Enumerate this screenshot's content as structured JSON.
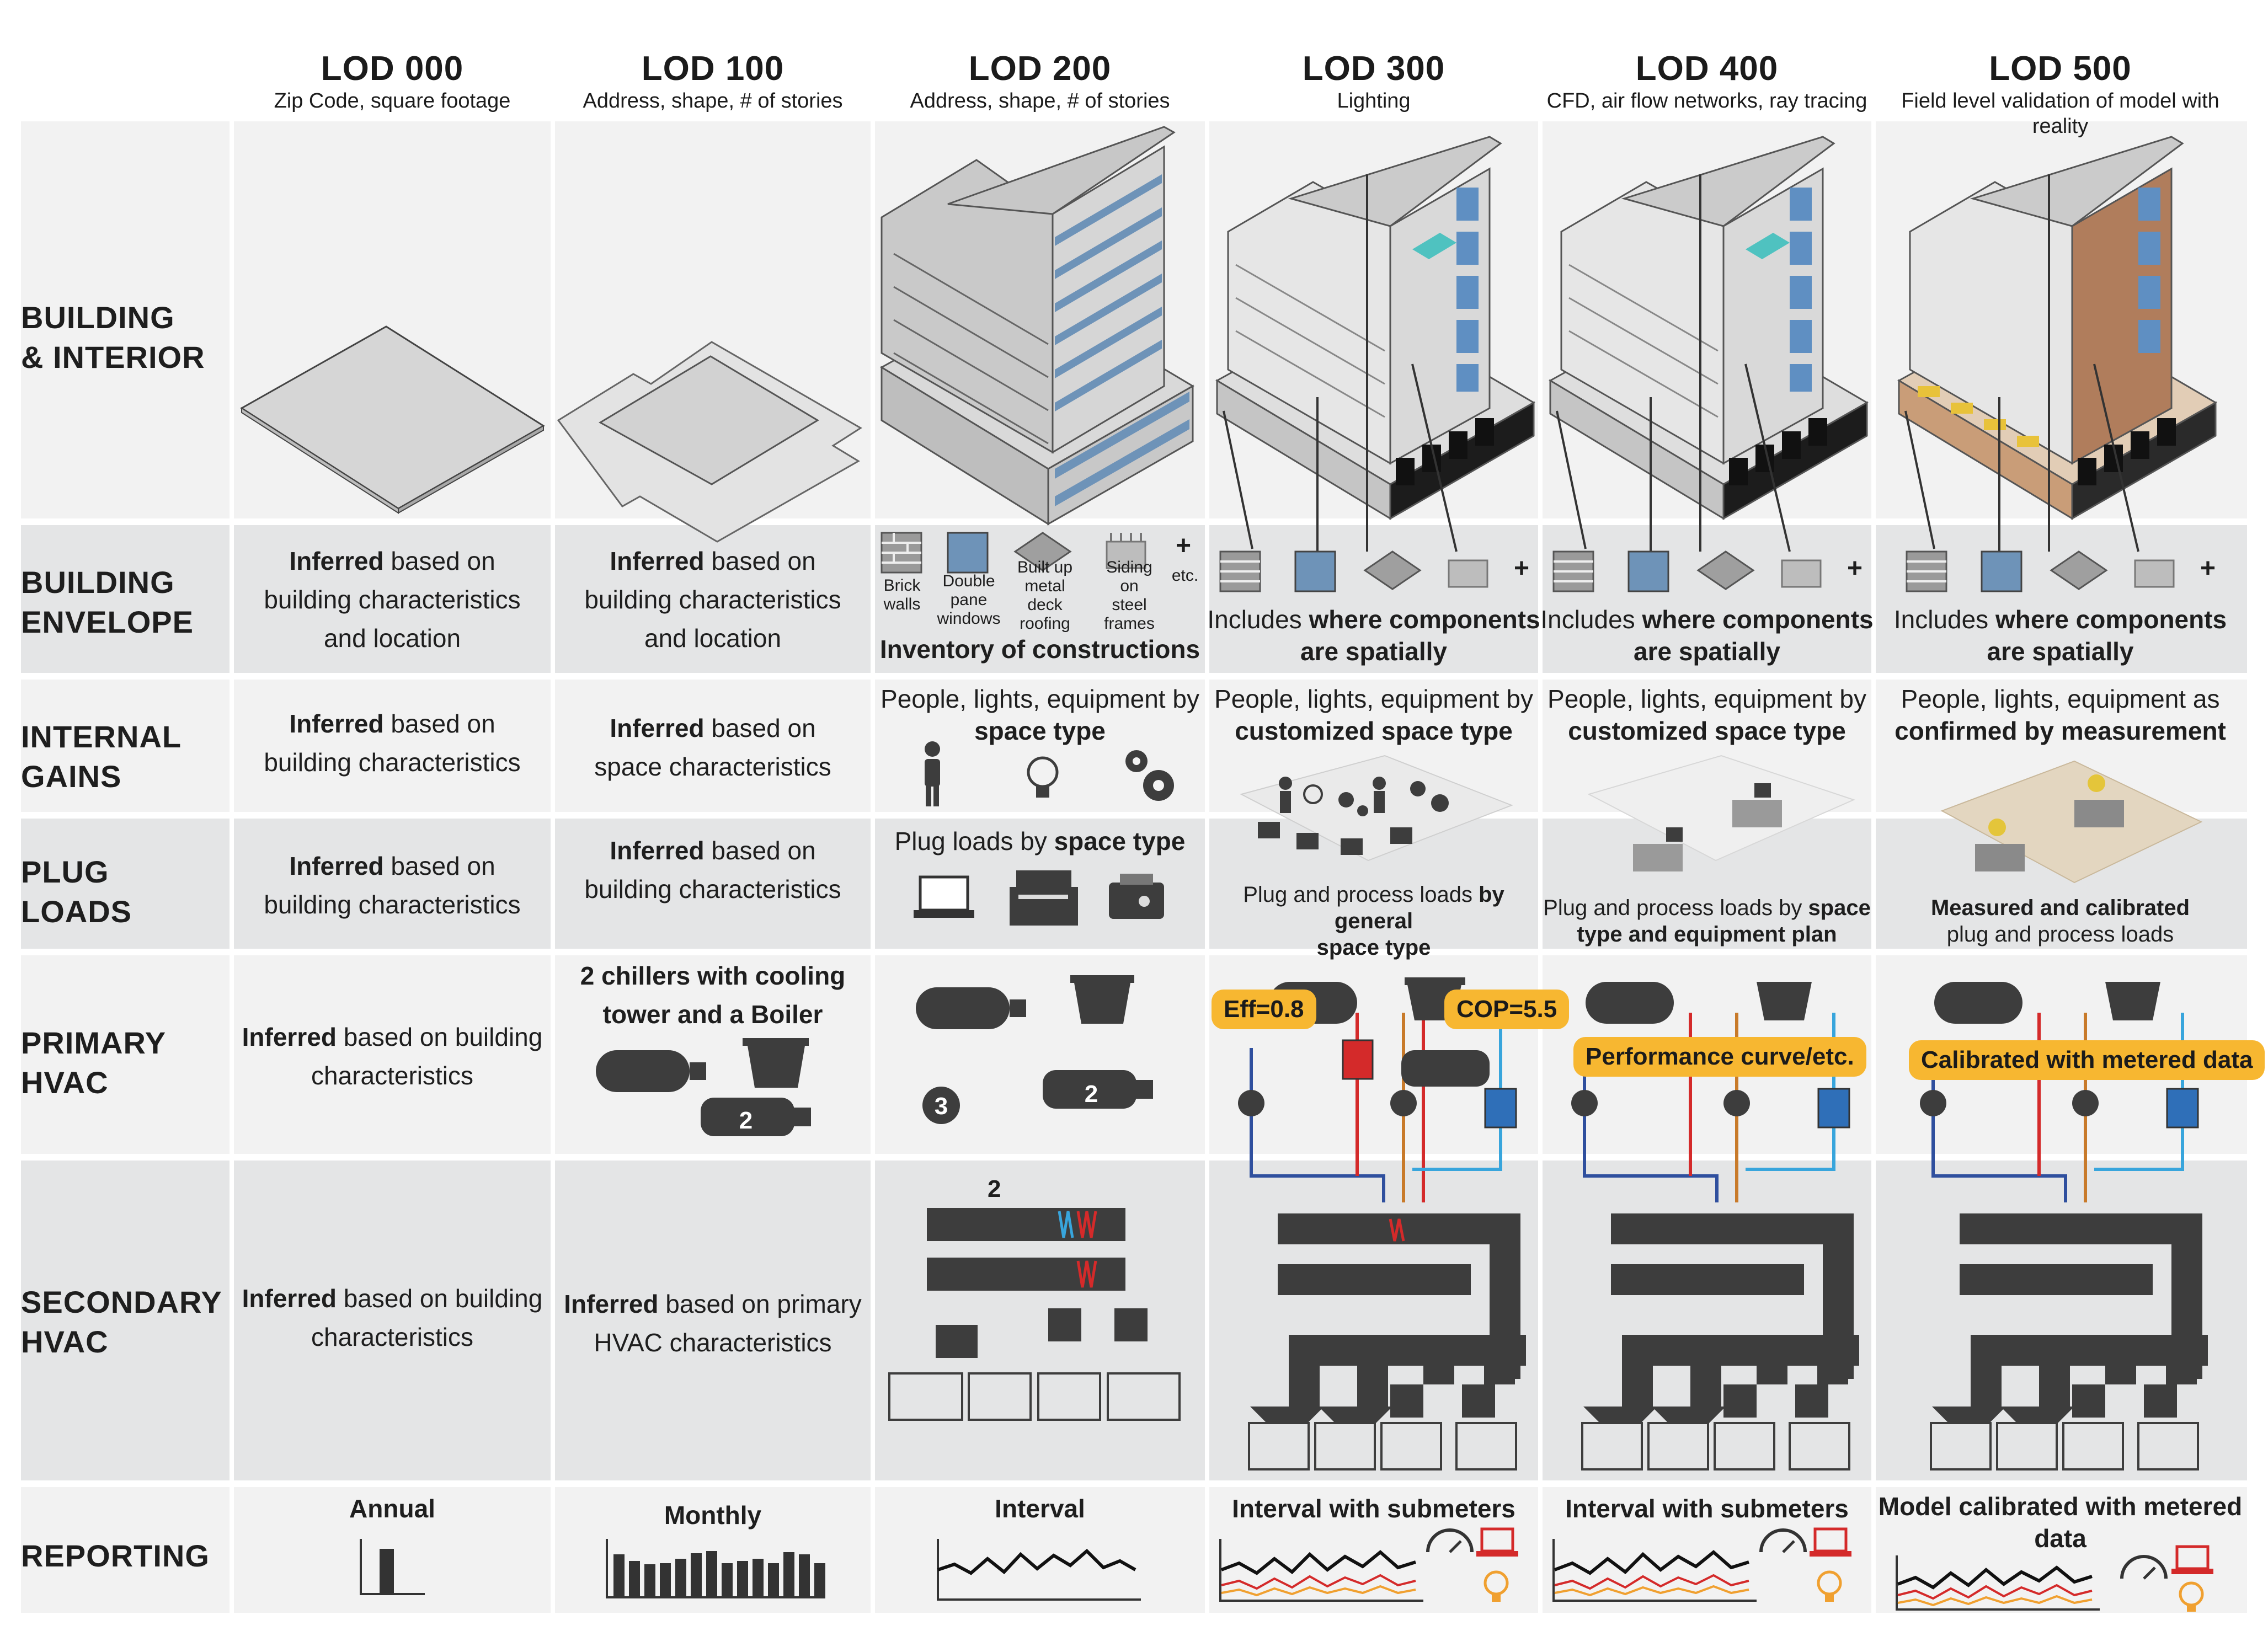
{
  "columns": [
    {
      "lod": "LOD 000",
      "subtitle": "Zip Code, square footage"
    },
    {
      "lod": "LOD 100",
      "subtitle": "Address, shape, # of stories"
    },
    {
      "lod": "LOD 200",
      "subtitle": "Address, shape, # of stories"
    },
    {
      "lod": "LOD 300",
      "subtitle": "Lighting"
    },
    {
      "lod": "LOD 400",
      "subtitle": "CFD, air flow networks, ray tracing"
    },
    {
      "lod": "LOD 500",
      "subtitle": "Field level validation of model with reality"
    }
  ],
  "rows": {
    "building": {
      "line1": "BUILDING",
      "line2": "& INTERIOR"
    },
    "envelope": {
      "line1": "BUILDING",
      "line2": "ENVELOPE"
    },
    "gains": {
      "line1": "INTERNAL",
      "line2": "GAINS"
    },
    "plug": {
      "line1": "PLUG",
      "line2": "LOADS"
    },
    "primary": {
      "line1": "PRIMARY",
      "line2": "HVAC"
    },
    "secondary": {
      "line1": "SECONDARY",
      "line2": "HVAC"
    },
    "reporting": {
      "line1": "REPORTING"
    }
  },
  "envelope": {
    "inferred_bold": "Inferred",
    "inferred_rest1": " based on",
    "lod000_l2": "building characteristics",
    "lod000_l3": "and location",
    "lod100_l2": "building characteristics",
    "lod100_l3": "and location",
    "icons": {
      "brick": "Brick walls",
      "brick_l1": "Brick",
      "brick_l2": "walls",
      "window_l1": "Double",
      "window_l2": "pane",
      "window_l3": "windows",
      "roof_l1": "Built up",
      "roof_l2": "metal deck",
      "roof_l3": "roofing",
      "siding_l1": "Siding",
      "siding_l2": "on",
      "siding_l3": "steel frames",
      "plus": "+",
      "etc": "etc."
    },
    "lod200_caption": "Inventory of constructions",
    "includes_pre": "Includes ",
    "includes_bold1": "where components",
    "includes_bold2": "are spatially"
  },
  "gains": {
    "lod000_l1_bold": "Inferred",
    "lod000_l1_rest": " based on",
    "lod000_l2": "building characteristics",
    "lod100_l1_bold": "Inferred",
    "lod100_l1_rest": " based on",
    "lod100_l2": "space characteristics",
    "lod200_l1": "People, lights, equipment by",
    "lod200_l2": "space type",
    "lod300_l1": "People, lights, equipment by",
    "lod300_l2": "customized space type",
    "lod400_l1": "People, lights, equipment by",
    "lod400_l2": "customized space type",
    "lod500_l1": "People, lights, equipment as",
    "lod500_l2": "confirmed by measurement"
  },
  "plug": {
    "lod000_l1_bold": "Inferred",
    "lod000_l1_rest": " based on",
    "lod000_l2": "building characteristics",
    "lod100_l1_bold": "Inferred",
    "lod100_l1_rest": " based on",
    "lod100_l2": "building characteristics",
    "lod200_pre": "Plug loads by ",
    "lod200_bold": "space type",
    "lod300_pre": "Plug and process loads ",
    "lod300_bold1": "by general",
    "lod300_bold2": "space type",
    "lod400_pre": "Plug and process loads by ",
    "lod400_bold1": "space",
    "lod400_bold2": "type and equipment plan",
    "lod500_bold": "Measured and calibrated",
    "lod500_rest": "plug and process loads"
  },
  "primary": {
    "lod000_bold": "Inferred",
    "lod000_rest": " based on building",
    "lod000_l2": "characteristics",
    "lod100_l1": "2 chillers with cooling",
    "lod100_l2": "tower and a Boiler",
    "num2": "2",
    "num3": "3",
    "eff": "Eff=0.8",
    "cop": "COP=5.5",
    "perf": "Performance curve/etc.",
    "calib": "Calibrated with metered data"
  },
  "secondary": {
    "lod000_bold": "Inferred",
    "lod000_rest": " based on building",
    "lod000_l2": "characteristics",
    "lod100_bold": "Inferred",
    "lod100_rest": " based on primary",
    "lod100_l2": "HVAC characteristics",
    "num2": "2"
  },
  "reporting": {
    "lod000": "Annual",
    "lod100": "Monthly",
    "lod200": "Interval",
    "lod300": "Interval with submeters",
    "lod400": "Interval with submeters",
    "lod500_l1": "Model calibrated with metered",
    "lod500_l2": "data"
  },
  "colors": {
    "row_light": "#f2f2f2",
    "row_dark": "#e4e5e6",
    "icon_dark": "#3d3d3d",
    "callout": "#f7b731",
    "window_blue": "#6e93b8",
    "pipe_red": "#d42a2a",
    "pipe_blue": "#2f4f9e",
    "pipe_lightblue": "#38a5dc",
    "pipe_orange": "#c87a2a"
  }
}
